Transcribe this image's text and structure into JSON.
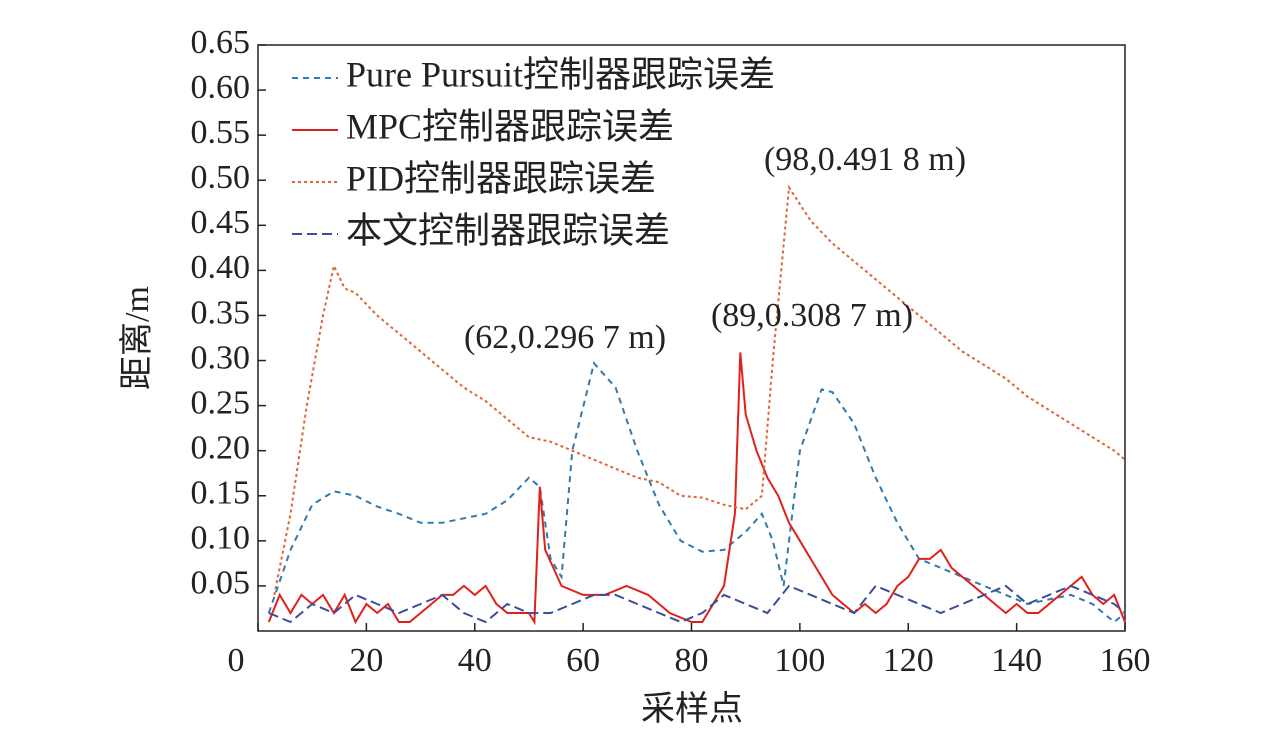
{
  "chart_data": {
    "type": "line",
    "xlabel": "采样点",
    "ylabel": "距离/m",
    "xlim": [
      0,
      160
    ],
    "ylim": [
      0,
      0.65
    ],
    "xticks": [
      0,
      20,
      40,
      60,
      80,
      100,
      120,
      140,
      160
    ],
    "yticks": [
      0.05,
      {
        "value": 0.1,
        "label": "0.10"
      },
      0.15,
      {
        "value": 0.2,
        "label": "0.20"
      },
      0.25,
      {
        "value": 0.3,
        "label": "0.30"
      },
      0.35,
      {
        "value": 0.4,
        "label": "0.40"
      },
      0.45,
      {
        "value": 0.5,
        "label": "0.50"
      },
      0.55,
      {
        "value": 0.6,
        "label": "0.60"
      },
      0.65
    ],
    "legend": "upper left",
    "annotations": [
      "(62,0.296 7 m)",
      "(89,0.308 7 m)",
      "(98,0.491 8  m)"
    ],
    "series": [
      {
        "name": "Pure Pursuit控制器跟踪误差",
        "color": "#2f7bb0",
        "dash": "6,5",
        "x": [
          2,
          6,
          10,
          14,
          18,
          22,
          26,
          30,
          34,
          38,
          42,
          46,
          50,
          52,
          54,
          56,
          58,
          62,
          66,
          70,
          74,
          78,
          82,
          86,
          90,
          93,
          95,
          97,
          100,
          104,
          106,
          110,
          114,
          118,
          122,
          126,
          130,
          134,
          138,
          142,
          146,
          150,
          154,
          158,
          160
        ],
        "values": [
          0.02,
          0.09,
          0.14,
          0.155,
          0.15,
          0.138,
          0.13,
          0.12,
          0.12,
          0.125,
          0.13,
          0.145,
          0.17,
          0.16,
          0.08,
          0.06,
          0.2,
          0.297,
          0.27,
          0.2,
          0.14,
          0.1,
          0.088,
          0.09,
          0.11,
          0.13,
          0.1,
          0.05,
          0.2,
          0.268,
          0.265,
          0.23,
          0.17,
          0.12,
          0.08,
          0.07,
          0.06,
          0.05,
          0.04,
          0.03,
          0.035,
          0.04,
          0.03,
          0.01,
          0.02
        ]
      },
      {
        "name": "MPC控制器跟踪误差",
        "color": "#e0201b",
        "dash": "none",
        "x": [
          2,
          4,
          6,
          8,
          10,
          12,
          14,
          16,
          18,
          20,
          22,
          24,
          26,
          28,
          30,
          32,
          34,
          36,
          38,
          40,
          42,
          44,
          46,
          48,
          50,
          51,
          52,
          53,
          56,
          60,
          64,
          68,
          72,
          76,
          80,
          82,
          84,
          86,
          88,
          89,
          90,
          92,
          94,
          96,
          98,
          100,
          102,
          104,
          106,
          108,
          110,
          112,
          114,
          116,
          118,
          120,
          122,
          124,
          126,
          128,
          130,
          132,
          134,
          136,
          138,
          140,
          142,
          144,
          146,
          148,
          150,
          152,
          154,
          156,
          158,
          160
        ],
        "values": [
          0.01,
          0.04,
          0.02,
          0.04,
          0.03,
          0.04,
          0.02,
          0.04,
          0.01,
          0.03,
          0.02,
          0.03,
          0.01,
          0.01,
          0.02,
          0.03,
          0.04,
          0.04,
          0.05,
          0.04,
          0.05,
          0.03,
          0.02,
          0.02,
          0.02,
          0.01,
          0.16,
          0.09,
          0.05,
          0.04,
          0.04,
          0.05,
          0.04,
          0.02,
          0.01,
          0.01,
          0.03,
          0.05,
          0.13,
          0.309,
          0.24,
          0.2,
          0.17,
          0.15,
          0.12,
          0.1,
          0.08,
          0.06,
          0.04,
          0.03,
          0.02,
          0.03,
          0.02,
          0.03,
          0.05,
          0.06,
          0.08,
          0.08,
          0.09,
          0.07,
          0.06,
          0.05,
          0.04,
          0.03,
          0.02,
          0.03,
          0.02,
          0.02,
          0.03,
          0.04,
          0.05,
          0.06,
          0.04,
          0.03,
          0.04,
          0.01
        ]
      },
      {
        "name": "PID控制器跟踪误差",
        "color": "#e06535",
        "dash": "3,3",
        "x": [
          3,
          6,
          9,
          12,
          14,
          16,
          18,
          22,
          26,
          30,
          34,
          38,
          42,
          46,
          50,
          54,
          58,
          62,
          66,
          70,
          74,
          78,
          82,
          86,
          90,
          93,
          95,
          98,
          102,
          106,
          110,
          114,
          118,
          122,
          126,
          130,
          134,
          138,
          142,
          146,
          150,
          154,
          158,
          160
        ],
        "values": [
          0.04,
          0.13,
          0.25,
          0.35,
          0.405,
          0.38,
          0.375,
          0.35,
          0.33,
          0.31,
          0.29,
          0.27,
          0.255,
          0.235,
          0.215,
          0.21,
          0.2,
          0.19,
          0.18,
          0.17,
          0.165,
          0.15,
          0.148,
          0.14,
          0.135,
          0.15,
          0.3,
          0.492,
          0.455,
          0.43,
          0.41,
          0.39,
          0.37,
          0.35,
          0.33,
          0.31,
          0.295,
          0.28,
          0.26,
          0.245,
          0.23,
          0.215,
          0.2,
          0.19
        ]
      },
      {
        "name": "本文控制器跟踪误差",
        "color": "#3a4e9a",
        "dash": "10,5",
        "x": [
          2,
          6,
          10,
          14,
          18,
          22,
          26,
          30,
          34,
          38,
          42,
          46,
          50,
          54,
          58,
          62,
          66,
          70,
          74,
          78,
          82,
          86,
          90,
          94,
          98,
          102,
          106,
          110,
          114,
          118,
          122,
          126,
          130,
          134,
          138,
          142,
          146,
          150,
          154,
          158,
          160
        ],
        "values": [
          0.02,
          0.01,
          0.03,
          0.02,
          0.04,
          0.03,
          0.02,
          0.03,
          0.04,
          0.02,
          0.01,
          0.03,
          0.02,
          0.02,
          0.03,
          0.04,
          0.04,
          0.03,
          0.02,
          0.01,
          0.02,
          0.04,
          0.03,
          0.02,
          0.05,
          0.04,
          0.03,
          0.02,
          0.05,
          0.04,
          0.03,
          0.02,
          0.03,
          0.04,
          0.05,
          0.03,
          0.04,
          0.05,
          0.04,
          0.03,
          0.02
        ]
      }
    ]
  }
}
